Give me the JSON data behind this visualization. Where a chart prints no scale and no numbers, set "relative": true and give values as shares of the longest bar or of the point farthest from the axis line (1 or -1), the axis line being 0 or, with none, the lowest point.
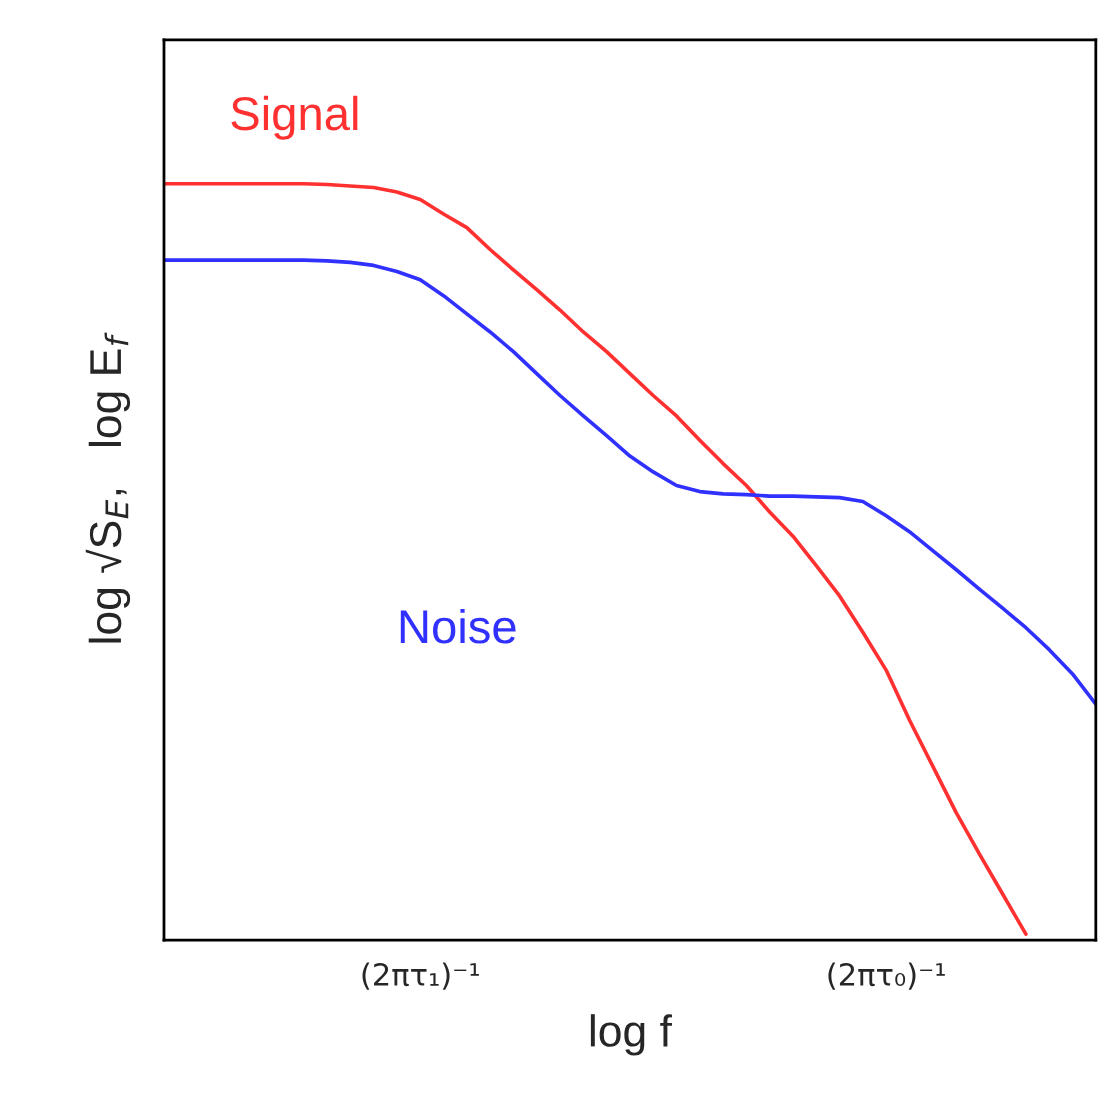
{
  "chart_data": {
    "type": "line",
    "relative": true,
    "xlabel": "log f",
    "ylabel": "log √S$_{E}$,   log E$_{f}$",
    "categories": [
      null,
      null,
      null,
      null,
      null,
      null,
      null,
      null,
      null,
      null,
      null,
      "(2πτ₁)⁻¹",
      null,
      null,
      null,
      null,
      null,
      null,
      null,
      null,
      null,
      null,
      null,
      null,
      null,
      null,
      null,
      null,
      null,
      null,
      null,
      "(2πτ₀)⁻¹",
      null,
      null,
      null,
      null,
      null,
      null,
      null,
      null,
      null
    ],
    "grid": false,
    "legend": false,
    "marker": "none",
    "line_style": "solid",
    "series": [
      {
        "name": "Signal",
        "color": "#ff3030",
        "values": [
          1.0,
          1.0,
          1.0,
          1.0,
          1.0,
          1.0,
          1.0,
          0.999,
          0.997,
          0.995,
          0.989,
          0.979,
          0.96,
          0.942,
          0.913,
          0.886,
          0.86,
          0.833,
          0.804,
          0.778,
          0.749,
          0.72,
          0.693,
          0.661,
          0.63,
          0.601,
          0.566,
          0.534,
          0.495,
          0.455,
          0.407,
          0.357,
          0.291,
          0.23,
          0.169,
          0.114,
          0.061,
          0.008,
          null,
          null,
          null
        ]
      },
      {
        "name": "Noise",
        "color": "#3030ff",
        "values": [
          0.899,
          0.899,
          0.899,
          0.899,
          0.899,
          0.899,
          0.899,
          0.898,
          0.896,
          0.892,
          0.884,
          0.873,
          0.852,
          0.828,
          0.804,
          0.778,
          0.749,
          0.72,
          0.693,
          0.667,
          0.64,
          0.619,
          0.601,
          0.593,
          0.59,
          0.589,
          0.587,
          0.587,
          0.586,
          0.585,
          0.58,
          0.561,
          0.54,
          0.515,
          0.49,
          0.464,
          0.439,
          0.413,
          0.384,
          0.352,
          0.312
        ]
      }
    ]
  }
}
